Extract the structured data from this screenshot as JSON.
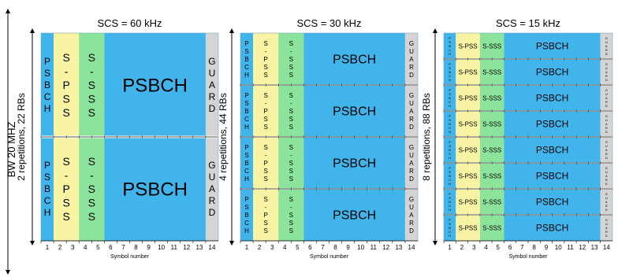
{
  "bw_label": "BW  20 MHZ",
  "axis_label": "Symbol number",
  "symbols": [
    "1",
    "2",
    "3",
    "4",
    "5",
    "6",
    "7",
    "8",
    "9",
    "10",
    "11",
    "12",
    "13",
    "14"
  ],
  "blocks": [
    {
      "title": "SCS = 60 kHz",
      "side_label": "2 repetitions,  22 RBs",
      "reps": 2,
      "psbch_small": "PSBCH",
      "pss": "S-PSS",
      "sss": "S-SSS",
      "psbch_main": "PSBCH",
      "guard": "GUARD"
    },
    {
      "title": "SCS = 30 kHz",
      "side_label": "4 repetitions, 44 RBs",
      "reps": 4,
      "psbch_small": "PSBCH",
      "pss": "S-PSS",
      "sss": "S-SSS",
      "psbch_main": "PSBCH",
      "guard": "GUARD"
    },
    {
      "title": "SCS = 15 kHz",
      "side_label": "8 repetitions,  88 RBs",
      "reps": 8,
      "psbch_small": "PSBCH",
      "pss": "S-PSS",
      "sss": "S-SSS",
      "psbch_main": "PSBCH",
      "guard": "GUARD"
    }
  ],
  "colors": {
    "psbch": "#42b4ec",
    "pss": "#f8f4a4",
    "sss": "#8ce49c",
    "guard": "#d4d4d4",
    "divider": "#ffffff"
  }
}
